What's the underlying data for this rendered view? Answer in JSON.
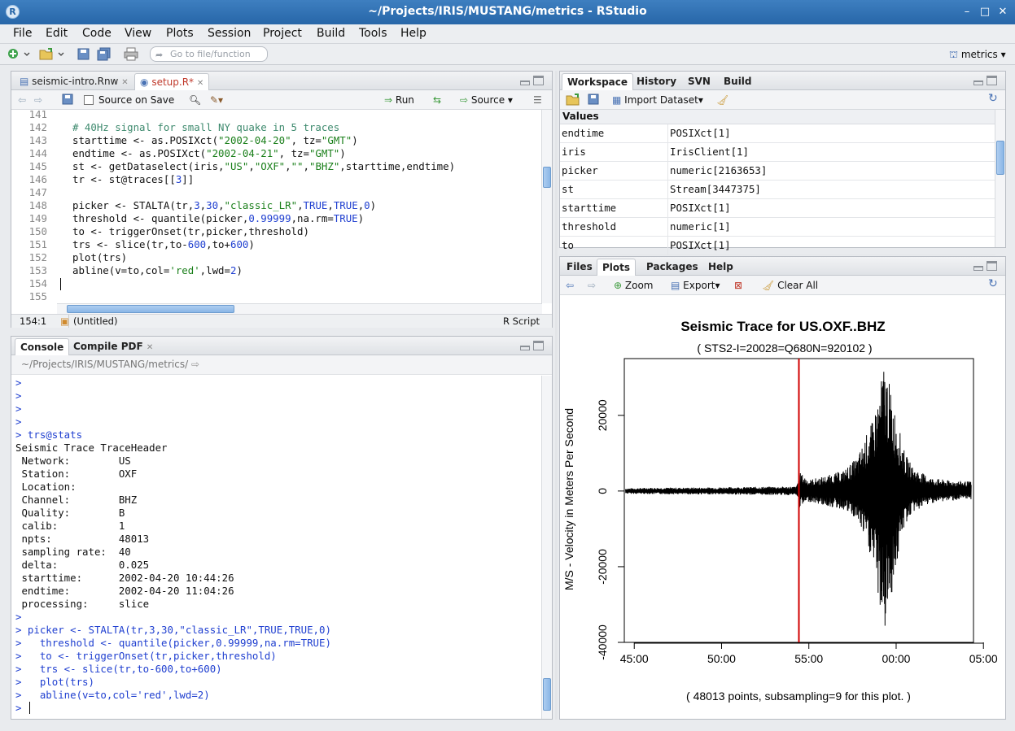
{
  "window": {
    "title": "~/Projects/IRIS/MUSTANG/metrics - RStudio",
    "minimize": "–",
    "maximize": "□",
    "close": "✕"
  },
  "menu": [
    "File",
    "Edit",
    "Code",
    "View",
    "Plots",
    "Session",
    "Project",
    "Build",
    "Tools",
    "Help"
  ],
  "toolbar": {
    "goto_placeholder": "Go to file/function",
    "project": "metrics"
  },
  "editor": {
    "tabs": [
      {
        "label": "seismic-intro.Rnw",
        "close": "✕"
      },
      {
        "label": "setup.R*",
        "close": "✕"
      }
    ],
    "source_on_save": "Source on Save",
    "run_label": "Run",
    "source_label": "Source",
    "cursor_position": "154:1",
    "scope": "(Untitled)",
    "file_type": "R Script",
    "lines": [
      {
        "n": "141",
        "html": ""
      },
      {
        "n": "142",
        "html": "<span class='c'># 40Hz signal for small NY quake in 5 traces</span>"
      },
      {
        "n": "143",
        "html": "starttime &lt;- as.POSIXct(<span class='s'>\"2002-04-20\"</span>, tz=<span class='s'>\"GMT\"</span>)"
      },
      {
        "n": "144",
        "html": "endtime &lt;- as.POSIXct(<span class='s'>\"2002-04-21\"</span>, tz=<span class='s'>\"GMT\"</span>)"
      },
      {
        "n": "145",
        "html": "st &lt;- getDataselect(iris,<span class='s'>\"US\"</span>,<span class='s'>\"OXF\"</span>,<span class='s'>\"\"</span>,<span class='s'>\"BHZ\"</span>,starttime,endtime)"
      },
      {
        "n": "146",
        "html": "tr &lt;- st@traces[[<span class='n'>3</span>]]"
      },
      {
        "n": "147",
        "html": ""
      },
      {
        "n": "148",
        "html": "picker &lt;- STALTA(tr,<span class='n'>3</span>,<span class='n'>30</span>,<span class='s'>\"classic_LR\"</span>,<span class='k'>TRUE</span>,<span class='k'>TRUE</span>,<span class='n'>0</span>)"
      },
      {
        "n": "149",
        "html": "threshold &lt;- quantile(picker,<span class='n'>0.99999</span>,na.rm=<span class='k'>TRUE</span>)"
      },
      {
        "n": "150",
        "html": "to &lt;- triggerOnset(tr,picker,threshold)"
      },
      {
        "n": "151",
        "html": "trs &lt;- slice(tr,to-<span class='n'>600</span>,to+<span class='n'>600</span>)"
      },
      {
        "n": "152",
        "html": "plot(trs)"
      },
      {
        "n": "153",
        "html": "abline(v=to,col=<span class='s'>'red'</span>,lwd=<span class='n'>2</span>)"
      },
      {
        "n": "154",
        "html": ""
      },
      {
        "n": "155",
        "html": ""
      },
      {
        "n": "156",
        "html": ""
      }
    ]
  },
  "console": {
    "tabs": [
      {
        "label": "Console"
      },
      {
        "label": "Compile PDF",
        "close": "✕"
      }
    ],
    "path": "~/Projects/IRIS/MUSTANG/metrics/",
    "lines": [
      {
        "t": ">",
        "cls": "blue"
      },
      {
        "t": ">",
        "cls": "blue"
      },
      {
        "t": ">",
        "cls": "blue"
      },
      {
        "t": ">",
        "cls": "blue"
      },
      {
        "t": "> trs@stats",
        "cls": "blue"
      },
      {
        "t": "Seismic Trace TraceHeader",
        "cls": ""
      },
      {
        "t": " Network:        US",
        "cls": ""
      },
      {
        "t": " Station:        OXF",
        "cls": ""
      },
      {
        "t": " Location:",
        "cls": ""
      },
      {
        "t": " Channel:        BHZ",
        "cls": ""
      },
      {
        "t": " Quality:        B",
        "cls": ""
      },
      {
        "t": " calib:          1",
        "cls": ""
      },
      {
        "t": " npts:           48013",
        "cls": ""
      },
      {
        "t": " sampling rate:  40",
        "cls": ""
      },
      {
        "t": " delta:          0.025",
        "cls": ""
      },
      {
        "t": " starttime:      2002-04-20 10:44:26",
        "cls": ""
      },
      {
        "t": " endtime:        2002-04-20 11:04:26",
        "cls": ""
      },
      {
        "t": " processing:     slice",
        "cls": ""
      },
      {
        "t": ">",
        "cls": "blue"
      },
      {
        "t": "> picker <- STALTA(tr,3,30,\"classic_LR\",TRUE,TRUE,0)",
        "cls": "blue"
      },
      {
        "t": ">   threshold <- quantile(picker,0.99999,na.rm=TRUE)",
        "cls": "blue"
      },
      {
        "t": ">   to <- triggerOnset(tr,picker,threshold)",
        "cls": "blue"
      },
      {
        "t": ">   trs <- slice(tr,to-600,to+600)",
        "cls": "blue"
      },
      {
        "t": ">   plot(trs)",
        "cls": "blue"
      },
      {
        "t": ">   abline(v=to,col='red',lwd=2)",
        "cls": "blue"
      },
      {
        "t": "> ",
        "cls": "blue"
      }
    ]
  },
  "workspace": {
    "tabs": [
      {
        "label": "Workspace"
      },
      {
        "label": "History"
      },
      {
        "label": "SVN"
      },
      {
        "label": "Build"
      }
    ],
    "import_label": "Import Dataset",
    "section": "Values",
    "rows": [
      {
        "name": "endtime",
        "value": "POSIXct[1]"
      },
      {
        "name": "iris",
        "value": "IrisClient[1]"
      },
      {
        "name": "picker",
        "value": "numeric[2163653]"
      },
      {
        "name": "st",
        "value": "Stream[3447375]"
      },
      {
        "name": "starttime",
        "value": "POSIXct[1]"
      },
      {
        "name": "threshold",
        "value": "numeric[1]"
      },
      {
        "name": "to",
        "value": "POSIXct[1]"
      }
    ]
  },
  "files_pane": {
    "tabs": [
      {
        "label": "Files"
      },
      {
        "label": "Plots"
      },
      {
        "label": "Packages"
      },
      {
        "label": "Help"
      }
    ],
    "zoom_label": "Zoom",
    "export_label": "Export",
    "clear_label": "Clear All"
  },
  "chart_data": {
    "type": "line",
    "title": "Seismic Trace for  US.OXF..BHZ",
    "subtitle": "( STS2-I=20028=Q680N=920102 )",
    "ylabel": "M/S - Velocity in Meters Per Second",
    "xlabel": "( 48013 points, subsampling=9 for this plot. )",
    "x_ticks": [
      "45:00",
      "50:00",
      "55:00",
      "00:00",
      "05:00"
    ],
    "x_tick_minutes": [
      45,
      50,
      55,
      60,
      65
    ],
    "y_ticks": [
      -40000,
      -20000,
      0,
      20000
    ],
    "xlim_minutes": [
      44.43,
      64.43
    ],
    "ylim": [
      -40000,
      35000
    ],
    "trigger_minutes": 54.43,
    "trigger_color": "#d00000",
    "series": [
      {
        "description": "envelope",
        "points": [
          [
            44.5,
            700,
            -700
          ],
          [
            46,
            900,
            -800
          ],
          [
            48,
            900,
            -900
          ],
          [
            50,
            1000,
            -900
          ],
          [
            52,
            1100,
            -1000
          ],
          [
            54.3,
            1200,
            -1100
          ],
          [
            54.45,
            5000,
            -4500
          ],
          [
            55,
            3000,
            -2800
          ],
          [
            56,
            4000,
            -4000
          ],
          [
            57,
            5500,
            -5000
          ],
          [
            57.8,
            9000,
            -8000
          ],
          [
            58.3,
            15000,
            -14000
          ],
          [
            58.7,
            19000,
            -20000
          ],
          [
            59.1,
            28000,
            -32000
          ],
          [
            59.3,
            34000,
            -39000
          ],
          [
            59.5,
            31000,
            -34000
          ],
          [
            59.8,
            24000,
            -26000
          ],
          [
            60.1,
            18000,
            -18000
          ],
          [
            60.5,
            10000,
            -9000
          ],
          [
            61,
            6000,
            -5500
          ],
          [
            62,
            3500,
            -3200
          ],
          [
            63,
            2800,
            -2600
          ],
          [
            64.3,
            2500,
            -2200
          ]
        ]
      }
    ]
  }
}
